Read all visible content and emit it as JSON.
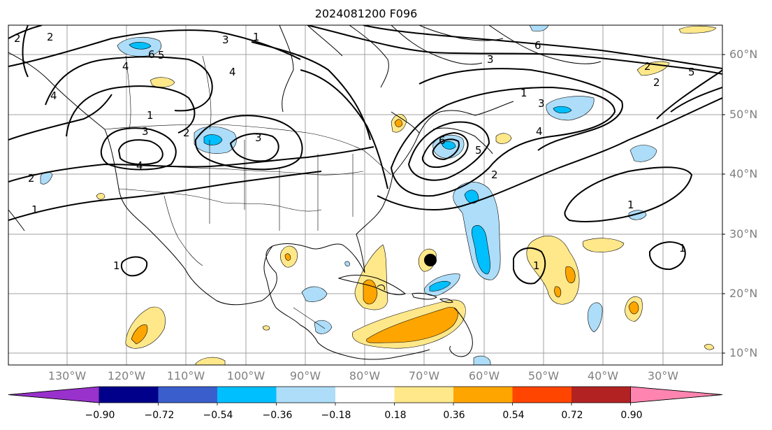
{
  "title": "2024081200 F096",
  "lat_labels": [
    "60°N",
    "50°N",
    "40°N",
    "30°N",
    "20°N",
    "10°N"
  ],
  "lon_labels": [
    "130°W",
    "120°W",
    "110°W",
    "100°W",
    "90°W",
    "80°W",
    "70°W",
    "60°W",
    "50°W",
    "40°W",
    "30°W"
  ],
  "colorbar": {
    "ticks": [
      "−0.90",
      "−0.72",
      "−0.54",
      "−0.36",
      "−0.18",
      "0.18",
      "0.36",
      "0.54",
      "0.72",
      "0.90"
    ],
    "colors": [
      "#9932CC",
      "#00008B",
      "#3A5FCD",
      "#00BFFF",
      "#ADDDF8",
      "#FFFFFF",
      "#FFE88A",
      "#FFA500",
      "#FF4500",
      "#B22222",
      "#FF85B0"
    ]
  },
  "contour_labels": [
    "1",
    "2",
    "3",
    "4",
    "5",
    "6"
  ],
  "storm_marker": "black-circle"
}
